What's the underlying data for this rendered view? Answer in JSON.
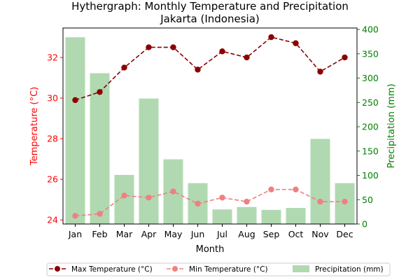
{
  "chart_data": {
    "type": "bar",
    "title": "Hythergraph: Monthly Temperature and Precipitation",
    "subtitle": "Jakarta (Indonesia)",
    "xlabel": "Month",
    "ylabel_left": "Temperature (°C)",
    "ylabel_right": "Precipitation (mm)",
    "categories": [
      "Jan",
      "Feb",
      "Mar",
      "Apr",
      "May",
      "Jun",
      "Jul",
      "Aug",
      "Sep",
      "Oct",
      "Nov",
      "Dec"
    ],
    "series": [
      {
        "name": "Max Temperature (°C)",
        "type": "line",
        "axis": "left",
        "color": "#8b0000",
        "line_style": "dashed",
        "values": [
          29.9,
          30.3,
          31.5,
          32.5,
          32.5,
          31.4,
          32.3,
          32.0,
          33.0,
          32.7,
          31.3,
          32.0
        ]
      },
      {
        "name": "Min Temperature (°C)",
        "type": "line",
        "axis": "left",
        "color": "#f08080",
        "line_style": "dashed",
        "values": [
          24.2,
          24.3,
          25.2,
          25.1,
          25.4,
          24.8,
          25.1,
          24.9,
          25.5,
          25.5,
          24.9,
          24.9
        ]
      },
      {
        "name": "Precipitation (mm)",
        "type": "bar",
        "axis": "right",
        "color": "#b1d9b1",
        "values": [
          384,
          310,
          101,
          258,
          133,
          84,
          30,
          35,
          29,
          33,
          175,
          84
        ]
      }
    ],
    "ylim_left": [
      23.8,
      33.45
    ],
    "ylim_right": [
      0,
      403
    ],
    "yticks_left": [
      24,
      26,
      28,
      30,
      32
    ],
    "yticks_right": [
      0,
      50,
      100,
      150,
      200,
      250,
      300,
      350,
      400
    ],
    "left_axis_color": "#ff0000",
    "right_axis_color": "#008000",
    "grid": false,
    "legend_position": "bottom"
  }
}
